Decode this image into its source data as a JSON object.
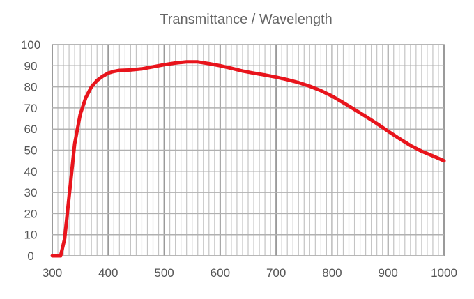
{
  "chart_data": {
    "type": "line",
    "title": "Transmittance / Wavelength",
    "xlabel": "",
    "ylabel": "",
    "xlim": [
      300,
      1000
    ],
    "ylim": [
      0,
      100
    ],
    "grid": true,
    "x_ticks": [
      300,
      400,
      500,
      600,
      700,
      800,
      900,
      1000
    ],
    "y_ticks": [
      0,
      10,
      20,
      30,
      40,
      50,
      60,
      70,
      80,
      90,
      100
    ],
    "series": [
      {
        "name": "Transmittance",
        "color": "#e8141c",
        "x": [
          300,
          315,
          322,
          330,
          340,
          350,
          360,
          370,
          380,
          390,
          400,
          410,
          420,
          440,
          460,
          480,
          500,
          520,
          540,
          560,
          580,
          600,
          620,
          640,
          660,
          680,
          700,
          720,
          740,
          760,
          780,
          800,
          820,
          840,
          860,
          880,
          900,
          920,
          940,
          960,
          980,
          1000
        ],
        "y": [
          0,
          0,
          8,
          28,
          53,
          67,
          75,
          80,
          83,
          85,
          86.5,
          87.3,
          87.8,
          88,
          88.5,
          89.5,
          90.5,
          91.3,
          91.8,
          91.8,
          91,
          90,
          88.8,
          87.5,
          86.5,
          85.6,
          84.6,
          83.4,
          82,
          80.3,
          78.2,
          75.6,
          72.5,
          69.3,
          66,
          62.6,
          59,
          55.5,
          52.2,
          49.5,
          47.3,
          45
        ]
      }
    ]
  }
}
